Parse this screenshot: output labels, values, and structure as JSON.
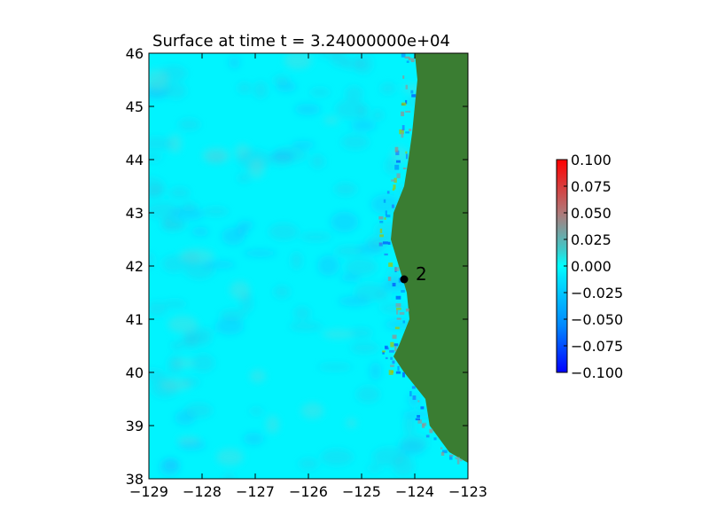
{
  "chart_data": {
    "type": "heatmap",
    "title": "Surface at time t = 3.24000000e+04",
    "xlabel": "",
    "ylabel": "",
    "xlim": [
      -129,
      -123
    ],
    "ylim": [
      38,
      46
    ],
    "x_ticks": [
      "−129",
      "−128",
      "−127",
      "−126",
      "−125",
      "−124",
      "−123"
    ],
    "y_ticks": [
      "38",
      "39",
      "40",
      "41",
      "42",
      "43",
      "44",
      "45",
      "46"
    ],
    "colorbar": {
      "range": [
        -0.1,
        0.1
      ],
      "ticks": [
        "−0.100",
        "−0.075",
        "−0.050",
        "−0.025",
        "0.000",
        "0.025",
        "0.050",
        "0.075",
        "0.100"
      ],
      "colors": [
        "#0000ff",
        "#00ffff",
        "#ff0000"
      ],
      "mid_color": "#808080"
    },
    "ocean_color": "#00f4ff",
    "land_color": "#3a7d32",
    "gauge": {
      "label": "2",
      "lon": -124.2,
      "lat": 41.75
    },
    "coastline": [
      [
        46.0,
        -124.0
      ],
      [
        45.5,
        -123.95
      ],
      [
        45.0,
        -124.0
      ],
      [
        44.5,
        -124.05
      ],
      [
        44.0,
        -124.12
      ],
      [
        43.5,
        -124.2
      ],
      [
        43.0,
        -124.4
      ],
      [
        42.5,
        -124.45
      ],
      [
        42.0,
        -124.3
      ],
      [
        41.5,
        -124.15
      ],
      [
        41.0,
        -124.1
      ],
      [
        40.5,
        -124.3
      ],
      [
        40.3,
        -124.4
      ],
      [
        40.0,
        -124.2
      ],
      [
        39.5,
        -123.8
      ],
      [
        39.0,
        -123.72
      ],
      [
        38.5,
        -123.35
      ],
      [
        38.3,
        -123.0
      ]
    ]
  }
}
